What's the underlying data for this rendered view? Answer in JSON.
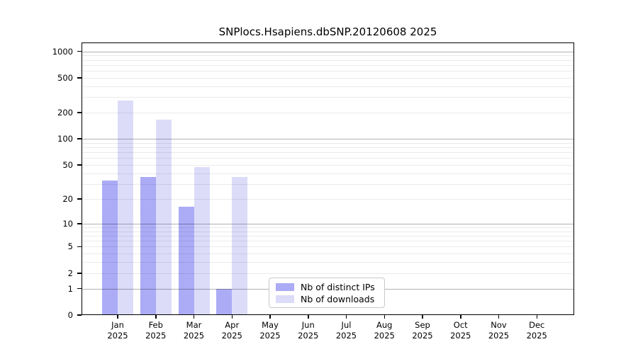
{
  "chart_data": {
    "type": "bar",
    "title": "SNPlocs.Hsapiens.dbSNP.20120608 2025",
    "categories": [
      "Jan",
      "Feb",
      "Mar",
      "Apr",
      "May",
      "Jun",
      "Jul",
      "Aug",
      "Sep",
      "Oct",
      "Nov",
      "Dec"
    ],
    "year": "2025",
    "series": [
      {
        "name": "Nb of distinct IPs",
        "color": "#ababf6",
        "values": [
          33,
          36,
          16,
          1,
          0,
          0,
          0,
          0,
          0,
          0,
          0,
          0
        ]
      },
      {
        "name": "Nb of downloads",
        "color": "#dcdcf9",
        "values": [
          275,
          166,
          47,
          36,
          0,
          0,
          0,
          0,
          0,
          0,
          0,
          0
        ]
      }
    ],
    "xlabel": "",
    "ylabel": "",
    "y_scale": "log1p",
    "ylim": [
      0,
      1260
    ],
    "y_ticks": [
      0,
      1,
      2,
      5,
      10,
      20,
      50,
      100,
      200,
      500,
      1000
    ],
    "y_major_gridlines": [
      1,
      10,
      100,
      1000
    ],
    "grid": true,
    "legend_position": "inside lower-center",
    "colors": {
      "distinct_ips_bar": "#ababf6",
      "downloads_bar": "#dcdcf9",
      "major_gridline": "#b3b3b3",
      "minor_gridline": "#ebebeb",
      "axis": "#000000",
      "legend_border": "#c9c9c9",
      "background": "#ffffff"
    }
  },
  "legend": {
    "items": [
      {
        "label": "Nb of distinct IPs"
      },
      {
        "label": "Nb of downloads"
      }
    ]
  }
}
